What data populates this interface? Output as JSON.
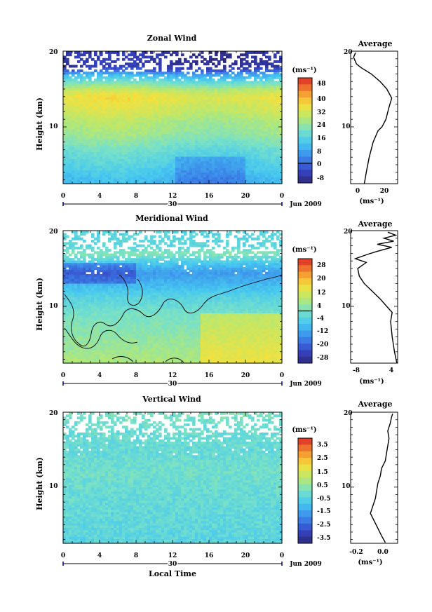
{
  "x_axis_label": "Local Time",
  "panels": [
    {
      "title": "Zonal Wind",
      "ylabel": "Height (km)",
      "unit": "(ms⁻¹)",
      "date_label": "30",
      "month_label": "Jun 2009",
      "avg_title": "Average",
      "avg_unit": "(ms⁻¹)",
      "colorbar_ticks": [
        "48",
        "40",
        "32",
        "24",
        "16",
        "8",
        "0",
        "-8"
      ],
      "colors": {
        "low": "#3b3fb8",
        "mid": "#5ec8f0",
        "high": "#f7e23a"
      }
    },
    {
      "title": "Meridional Wind",
      "ylabel": "Height (km)",
      "unit": "(ms⁻¹)",
      "date_label": "30",
      "month_label": "Jun 2009",
      "avg_title": "Average",
      "avg_unit": "(ms⁻¹)",
      "colorbar_ticks": [
        "28",
        "20",
        "12",
        "4",
        "-4",
        "-12",
        "-20",
        "-28"
      ]
    },
    {
      "title": "Vertical Wind",
      "ylabel": "Height (km)",
      "unit": "(ms⁻¹)",
      "date_label": "30",
      "month_label": "Jun 2009",
      "avg_title": "Average",
      "avg_unit": "(ms⁻¹)",
      "colorbar_ticks": [
        "3.5",
        "2.5",
        "1.5",
        "0.5",
        "-0.5",
        "-1.5",
        "-2.5",
        "-3.5"
      ]
    }
  ],
  "chart_data": [
    {
      "type": "heatmap",
      "title": "Zonal Wind",
      "xlabel": "",
      "ylabel": "Height (km)",
      "x_ticks": [
        "0",
        "4",
        "8",
        "12",
        "16",
        "20",
        "0"
      ],
      "y_ticks": [
        "20",
        "10"
      ],
      "xlim": [
        0,
        24
      ],
      "ylim": [
        2.5,
        20
      ],
      "colorbar": {
        "unit": "(ms⁻¹)",
        "min": -12,
        "max": 52,
        "zero_line": 0
      },
      "profile_by_height": [
        {
          "h": 3,
          "v": 10
        },
        {
          "h": 5,
          "v": 14
        },
        {
          "h": 7,
          "v": 18
        },
        {
          "h": 9,
          "v": 24
        },
        {
          "h": 11,
          "v": 27
        },
        {
          "h": 12,
          "v": 30
        },
        {
          "h": 13,
          "v": 32
        },
        {
          "h": 14,
          "v": 34
        },
        {
          "h": 15,
          "v": 28
        },
        {
          "h": 16,
          "v": 18
        },
        {
          "h": 17,
          "v": 8
        },
        {
          "h": 17.5,
          "v": -2
        },
        {
          "h": 18,
          "v": -8
        }
      ],
      "average_profile": {
        "title": "Average",
        "xlabel": "(ms⁻¹)",
        "x_ticks": [
          "0",
          "20"
        ],
        "y_ticks": [
          "20",
          "10"
        ],
        "xlim": [
          -8,
          40
        ],
        "ylim": [
          2.5,
          20
        ],
        "points": [
          [
            6,
            2.5
          ],
          [
            8,
            4
          ],
          [
            11,
            6
          ],
          [
            15,
            8
          ],
          [
            20,
            9.5
          ],
          [
            24,
            10
          ],
          [
            28,
            11
          ],
          [
            31,
            12.5
          ],
          [
            34,
            13.8
          ],
          [
            29,
            15
          ],
          [
            22,
            16
          ],
          [
            13,
            17
          ],
          [
            3,
            17.8
          ],
          [
            -2,
            18.3
          ],
          [
            -5,
            19.2
          ],
          [
            -3,
            19.8
          ]
        ]
      }
    },
    {
      "type": "heatmap",
      "title": "Meridional Wind",
      "xlabel": "",
      "ylabel": "Height (km)",
      "x_ticks": [
        "0",
        "4",
        "8",
        "12",
        "16",
        "20",
        "0"
      ],
      "y_ticks": [
        "20",
        "10"
      ],
      "xlim": [
        0,
        24
      ],
      "ylim": [
        2.5,
        20
      ],
      "colorbar": {
        "unit": "(ms⁻¹)",
        "min": -32,
        "max": 32,
        "zero_line": 0
      },
      "profile_by_height": [
        {
          "h": 3,
          "v": 6
        },
        {
          "h": 5,
          "v": 4
        },
        {
          "h": 7,
          "v": 2
        },
        {
          "h": 9,
          "v": 0
        },
        {
          "h": 11,
          "v": -4
        },
        {
          "h": 13,
          "v": -10
        },
        {
          "h": 14.5,
          "v": -14
        },
        {
          "h": 16,
          "v": -6
        },
        {
          "h": 17,
          "v": 2
        },
        {
          "h": 18,
          "v": -4
        }
      ],
      "average_profile": {
        "title": "Average",
        "xlabel": "(ms⁻¹)",
        "x_ticks": [
          "-8",
          "4"
        ],
        "y_ticks": [
          "20",
          "10"
        ],
        "xlim": [
          -8,
          4
        ],
        "ylim": [
          2.5,
          20
        ],
        "points": [
          [
            3.8,
            2.5
          ],
          [
            3.2,
            4
          ],
          [
            2.6,
            6
          ],
          [
            2.2,
            8
          ],
          [
            2.6,
            9.2
          ],
          [
            1.2,
            10
          ],
          [
            -0.5,
            11
          ],
          [
            -2.5,
            12
          ],
          [
            -4.5,
            13
          ],
          [
            -5.8,
            14
          ],
          [
            -6.2,
            15
          ],
          [
            -4.0,
            15.8
          ],
          [
            -6.8,
            16.3
          ],
          [
            -3.5,
            16.9
          ],
          [
            -1.0,
            17.3
          ],
          [
            2.5,
            17.8
          ],
          [
            -1.2,
            18.2
          ],
          [
            3.0,
            18.6
          ],
          [
            0.5,
            19.0
          ],
          [
            3.5,
            19.4
          ],
          [
            1.5,
            19.8
          ]
        ]
      }
    },
    {
      "type": "heatmap",
      "title": "Vertical Wind",
      "xlabel": "Local Time",
      "ylabel": "Height (km)",
      "x_ticks": [
        "0",
        "4",
        "8",
        "12",
        "16",
        "20",
        "0"
      ],
      "y_ticks": [
        "20",
        "10"
      ],
      "xlim": [
        0,
        24
      ],
      "ylim": [
        2.5,
        20
      ],
      "colorbar": {
        "unit": "(ms⁻¹)",
        "min": -4,
        "max": 4,
        "zero_line": null
      },
      "profile_by_height": [
        {
          "h": 3,
          "v": -0.5
        },
        {
          "h": 6,
          "v": -0.4
        },
        {
          "h": 9,
          "v": -0.3
        },
        {
          "h": 12,
          "v": -0.1
        },
        {
          "h": 15,
          "v": -0.3
        },
        {
          "h": 18,
          "v": -0.2
        },
        {
          "h": 19.5,
          "v": 0.0
        }
      ],
      "average_profile": {
        "title": "Average",
        "xlabel": "(ms⁻¹)",
        "x_ticks": [
          "-0.2",
          "0.0"
        ],
        "y_ticks": [
          "20",
          "10"
        ],
        "xlim": [
          -0.3,
          0.08
        ],
        "ylim": [
          2.5,
          20
        ],
        "points": [
          [
            -0.02,
            2.6
          ],
          [
            -0.05,
            3.5
          ],
          [
            -0.08,
            4.5
          ],
          [
            -0.11,
            5.5
          ],
          [
            -0.14,
            6.5
          ],
          [
            -0.12,
            7.5
          ],
          [
            -0.1,
            8.5
          ],
          [
            -0.09,
            9.5
          ],
          [
            -0.08,
            10.5
          ],
          [
            -0.06,
            11.5
          ],
          [
            -0.05,
            12.5
          ],
          [
            -0.02,
            13.5
          ],
          [
            -0.01,
            14.5
          ],
          [
            0.0,
            15.5
          ],
          [
            0.01,
            16.5
          ],
          [
            0.0,
            17.5
          ],
          [
            0.02,
            18.5
          ],
          [
            0.03,
            19.3
          ],
          [
            0.04,
            19.8
          ]
        ]
      }
    }
  ]
}
